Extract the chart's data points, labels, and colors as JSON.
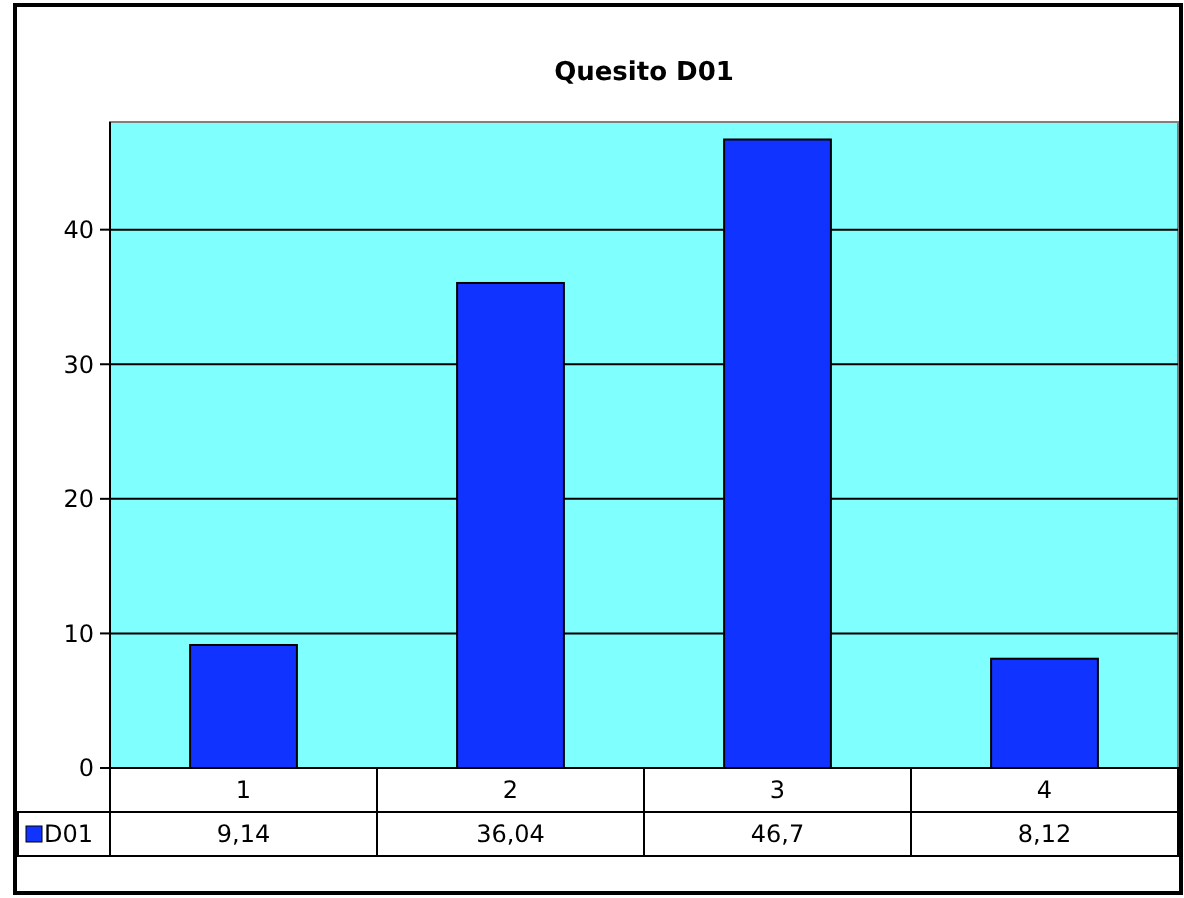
{
  "chart_data": {
    "type": "bar",
    "title": "Quesito D01",
    "categories": [
      "1",
      "2",
      "3",
      "4"
    ],
    "series": [
      {
        "name": "D01",
        "color": "#1133ff",
        "values": [
          9.14,
          36.04,
          46.7,
          8.12
        ],
        "value_labels": [
          "9,14",
          "36,04",
          "46,7",
          "8,12"
        ]
      }
    ],
    "ylim": [
      0,
      48
    ],
    "yticks": [
      0,
      10,
      20,
      30,
      40
    ],
    "grid": "y",
    "legend": "bottom left"
  }
}
